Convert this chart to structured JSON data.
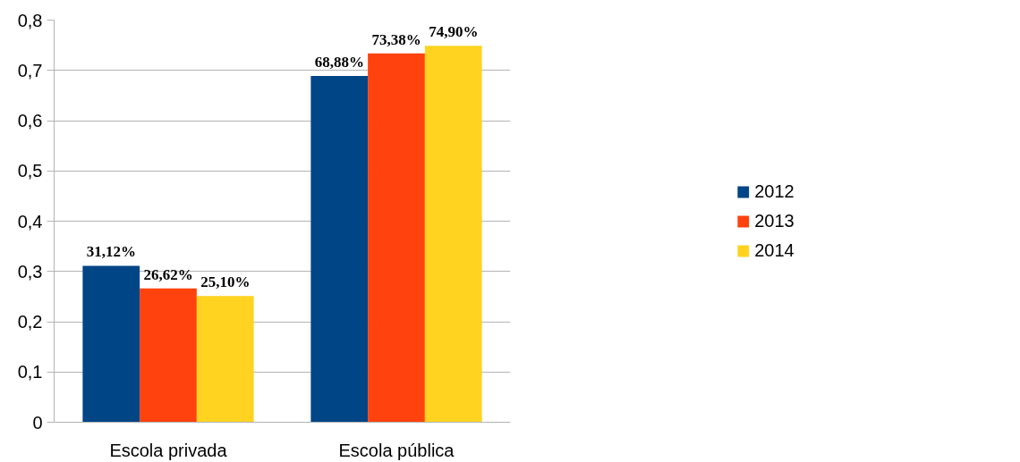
{
  "chart_data": {
    "type": "bar",
    "categories": [
      "Escola privada",
      "Escola pública"
    ],
    "series": [
      {
        "name": "2012",
        "color": "#004586",
        "values": [
          0.3112,
          0.6888
        ],
        "value_labels": [
          "31,12%",
          "68,88%"
        ]
      },
      {
        "name": "2013",
        "color": "#ff420e",
        "values": [
          0.2662,
          0.7338
        ],
        "value_labels": [
          "26,62%",
          "73,38%"
        ]
      },
      {
        "name": "2014",
        "color": "#ffd320",
        "values": [
          0.251,
          0.749
        ],
        "value_labels": [
          "25,10%",
          "74,90%"
        ]
      }
    ],
    "ylim": [
      0,
      0.8
    ],
    "yticks": [
      {
        "value": 0,
        "label": "0"
      },
      {
        "value": 0.1,
        "label": "0,1"
      },
      {
        "value": 0.2,
        "label": "0,2"
      },
      {
        "value": 0.3,
        "label": "0,3"
      },
      {
        "value": 0.4,
        "label": "0,4"
      },
      {
        "value": 0.5,
        "label": "0,5"
      },
      {
        "value": 0.6,
        "label": "0,6"
      },
      {
        "value": 0.7,
        "label": "0,7"
      },
      {
        "value": 0.8,
        "label": "0,8"
      }
    ],
    "grid": "y",
    "legend": "right"
  }
}
